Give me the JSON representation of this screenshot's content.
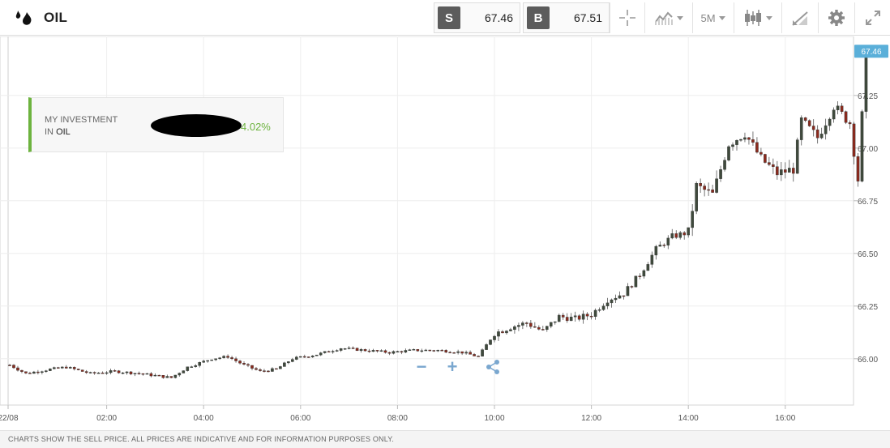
{
  "header": {
    "asset_name": "OIL",
    "sell": {
      "label": "S",
      "price": "67.46"
    },
    "buy": {
      "label": "B",
      "price": "67.51"
    },
    "timeframe": "5M",
    "tools": [
      "crosshair-icon",
      "chart-type-icon",
      "timeframe-selector",
      "candlestick-icon",
      "drawing-icon",
      "gear-icon",
      "fullscreen-icon"
    ]
  },
  "investment": {
    "label_line1": "MY INVESTMENT",
    "label_line2_prefix": "IN ",
    "label_line2_asset": "OIL",
    "percent": "4.02%",
    "percent_color": "#6db33f"
  },
  "colors": {
    "up": "#3f4a3c",
    "down": "#8c2a1d",
    "current_price_tag": "#5aafd9",
    "accent_green": "#6db33f",
    "control_blue": "#7aa7cf"
  },
  "chart_data": {
    "type": "candlestick",
    "x_tick_labels": [
      "22/08",
      "02:00",
      "04:00",
      "06:00",
      "08:00",
      "10:00",
      "12:00",
      "14:00",
      "16:00"
    ],
    "y_tick_labels": [
      "66.00",
      "66.25",
      "66.50",
      "66.75",
      "67.00",
      "67.25"
    ],
    "ylim": [
      65.78,
      67.53
    ],
    "current_price": "67.46",
    "interval": "5M",
    "trend_points": [
      {
        "t": "22/08 00:00",
        "v": 65.97
      },
      {
        "t": "00:20",
        "v": 65.93
      },
      {
        "t": "00:50",
        "v": 65.95
      },
      {
        "t": "01:10",
        "v": 65.96
      },
      {
        "t": "01:40",
        "v": 65.93
      },
      {
        "t": "02:10",
        "v": 65.94
      },
      {
        "t": "02:40",
        "v": 65.93
      },
      {
        "t": "03:00",
        "v": 65.92
      },
      {
        "t": "03:20",
        "v": 65.91
      },
      {
        "t": "03:40",
        "v": 65.96
      },
      {
        "t": "04:10",
        "v": 66.0
      },
      {
        "t": "04:30",
        "v": 66.01
      },
      {
        "t": "04:50",
        "v": 65.97
      },
      {
        "t": "05:10",
        "v": 65.94
      },
      {
        "t": "05:30",
        "v": 65.95
      },
      {
        "t": "05:50",
        "v": 66.0
      },
      {
        "t": "06:20",
        "v": 66.02
      },
      {
        "t": "06:50",
        "v": 66.05
      },
      {
        "t": "07:20",
        "v": 66.04
      },
      {
        "t": "07:50",
        "v": 66.03
      },
      {
        "t": "08:20",
        "v": 66.04
      },
      {
        "t": "08:50",
        "v": 66.04
      },
      {
        "t": "09:20",
        "v": 66.03
      },
      {
        "t": "09:40",
        "v": 66.01
      },
      {
        "t": "10:00",
        "v": 66.12
      },
      {
        "t": "10:20",
        "v": 66.15
      },
      {
        "t": "10:40",
        "v": 66.17
      },
      {
        "t": "11:00",
        "v": 66.13
      },
      {
        "t": "11:20",
        "v": 66.2
      },
      {
        "t": "11:40",
        "v": 66.19
      },
      {
        "t": "12:00",
        "v": 66.21
      },
      {
        "t": "12:20",
        "v": 66.28
      },
      {
        "t": "12:40",
        "v": 66.31
      },
      {
        "t": "13:00",
        "v": 66.4
      },
      {
        "t": "13:20",
        "v": 66.52
      },
      {
        "t": "13:40",
        "v": 66.58
      },
      {
        "t": "14:00",
        "v": 66.6
      },
      {
        "t": "14:10",
        "v": 66.82
      },
      {
        "t": "14:30",
        "v": 66.78
      },
      {
        "t": "14:50",
        "v": 67.02
      },
      {
        "t": "15:10",
        "v": 67.07
      },
      {
        "t": "15:30",
        "v": 66.95
      },
      {
        "t": "15:50",
        "v": 66.88
      },
      {
        "t": "16:10",
        "v": 66.9
      },
      {
        "t": "16:20",
        "v": 67.13
      },
      {
        "t": "16:40",
        "v": 67.05
      },
      {
        "t": "17:00",
        "v": 67.2
      },
      {
        "t": "17:20",
        "v": 67.12
      },
      {
        "t": "17:30",
        "v": 66.85
      },
      {
        "t": "17:40",
        "v": 67.46
      }
    ]
  },
  "controls": {
    "zoom_out": "−",
    "zoom_in": "+"
  },
  "footer": {
    "disclaimer": "CHARTS SHOW THE SELL PRICE. ALL PRICES ARE INDICATIVE AND FOR INFORMATION PURPOSES ONLY."
  }
}
